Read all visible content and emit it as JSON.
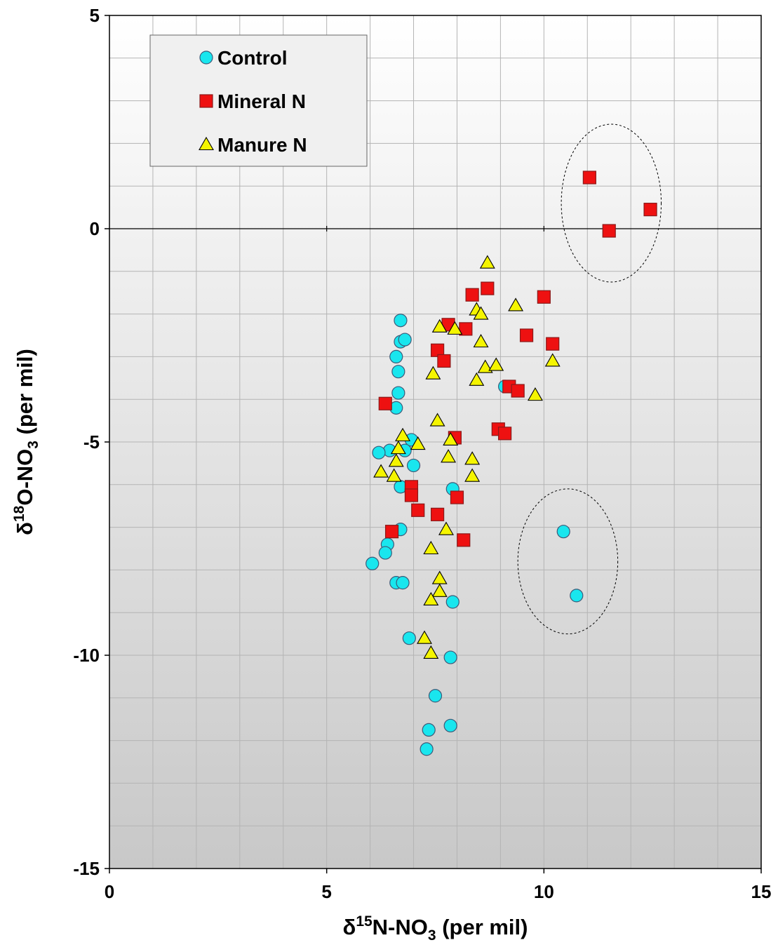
{
  "chart_data": {
    "type": "scatter",
    "xlabel": {
      "prefix": "δ",
      "sup": "15",
      "main": "N-NO",
      "sub": "3",
      "suffix": " (per mil)"
    },
    "ylabel": {
      "prefix": "δ",
      "sup": "18",
      "main": "O-NO",
      "sub": "3",
      "suffix": " (per mil)"
    },
    "xlim": [
      0,
      15
    ],
    "ylim": [
      -15,
      5
    ],
    "x_ticks": [
      0,
      5,
      10,
      15
    ],
    "y_ticks": [
      5,
      0,
      -5,
      -10,
      -15
    ],
    "x_tick_labels": [
      "0",
      "5",
      "10",
      "15"
    ],
    "y_tick_labels": [
      "5",
      "0",
      "-5",
      "-10",
      "-15"
    ],
    "grid": true,
    "minor_grid_step": 1,
    "legend_position": "top-left",
    "series": [
      {
        "name": "Control",
        "marker": "circle",
        "color": "#19e6ee",
        "points": [
          [
            6.7,
            -2.15
          ],
          [
            6.7,
            -2.65
          ],
          [
            6.8,
            -2.6
          ],
          [
            6.6,
            -3.0
          ],
          [
            6.65,
            -3.35
          ],
          [
            6.65,
            -3.85
          ],
          [
            6.6,
            -4.2
          ],
          [
            9.1,
            -3.7
          ],
          [
            6.95,
            -4.95
          ],
          [
            6.8,
            -5.2
          ],
          [
            6.45,
            -5.2
          ],
          [
            6.2,
            -5.25
          ],
          [
            7.0,
            -5.55
          ],
          [
            6.7,
            -6.05
          ],
          [
            7.9,
            -6.1
          ],
          [
            6.7,
            -7.05
          ],
          [
            6.4,
            -7.4
          ],
          [
            6.35,
            -7.6
          ],
          [
            6.05,
            -7.85
          ],
          [
            6.6,
            -8.3
          ],
          [
            6.75,
            -8.3
          ],
          [
            7.9,
            -8.75
          ],
          [
            10.45,
            -7.1
          ],
          [
            10.75,
            -8.6
          ],
          [
            6.9,
            -9.6
          ],
          [
            7.85,
            -10.05
          ],
          [
            7.5,
            -10.95
          ],
          [
            7.35,
            -11.75
          ],
          [
            7.85,
            -11.65
          ],
          [
            7.3,
            -12.2
          ]
        ]
      },
      {
        "name": "Mineral N",
        "marker": "square",
        "color": "#ee1111",
        "points": [
          [
            11.05,
            1.2
          ],
          [
            12.45,
            0.45
          ],
          [
            11.5,
            -0.05
          ],
          [
            8.7,
            -1.4
          ],
          [
            8.35,
            -1.55
          ],
          [
            10.0,
            -1.6
          ],
          [
            7.8,
            -2.25
          ],
          [
            8.2,
            -2.35
          ],
          [
            9.6,
            -2.5
          ],
          [
            10.2,
            -2.7
          ],
          [
            7.55,
            -2.85
          ],
          [
            7.7,
            -3.1
          ],
          [
            9.2,
            -3.7
          ],
          [
            9.4,
            -3.8
          ],
          [
            6.35,
            -4.1
          ],
          [
            8.95,
            -4.7
          ],
          [
            9.1,
            -4.8
          ],
          [
            7.95,
            -4.9
          ],
          [
            6.95,
            -6.05
          ],
          [
            6.95,
            -6.25
          ],
          [
            8.0,
            -6.3
          ],
          [
            7.1,
            -6.6
          ],
          [
            7.55,
            -6.7
          ],
          [
            6.5,
            -7.1
          ],
          [
            8.15,
            -7.3
          ]
        ]
      },
      {
        "name": "Manure N",
        "marker": "triangle",
        "color": "#f5f500",
        "points": [
          [
            8.7,
            -0.8
          ],
          [
            9.35,
            -1.8
          ],
          [
            8.45,
            -1.9
          ],
          [
            8.55,
            -2.0
          ],
          [
            7.6,
            -2.3
          ],
          [
            7.95,
            -2.35
          ],
          [
            8.55,
            -2.65
          ],
          [
            8.65,
            -3.25
          ],
          [
            8.9,
            -3.2
          ],
          [
            10.2,
            -3.1
          ],
          [
            7.45,
            -3.4
          ],
          [
            8.45,
            -3.55
          ],
          [
            9.8,
            -3.9
          ],
          [
            7.55,
            -4.5
          ],
          [
            6.75,
            -4.85
          ],
          [
            7.85,
            -4.95
          ],
          [
            6.65,
            -5.15
          ],
          [
            7.1,
            -5.05
          ],
          [
            6.6,
            -5.45
          ],
          [
            7.8,
            -5.35
          ],
          [
            8.35,
            -5.4
          ],
          [
            6.25,
            -5.7
          ],
          [
            6.55,
            -5.8
          ],
          [
            8.35,
            -5.8
          ],
          [
            7.75,
            -7.05
          ],
          [
            7.4,
            -7.5
          ],
          [
            7.6,
            -8.2
          ],
          [
            7.6,
            -8.5
          ],
          [
            7.4,
            -8.7
          ],
          [
            7.25,
            -9.6
          ],
          [
            7.4,
            -9.95
          ]
        ]
      }
    ],
    "annotations": [
      {
        "type": "dashed-circle",
        "cx": 11.55,
        "cy": 0.6,
        "rx": 1.15,
        "ry": 1.85
      },
      {
        "type": "dashed-circle",
        "cx": 10.55,
        "cy": -7.8,
        "rx": 1.15,
        "ry": 1.7
      }
    ]
  }
}
